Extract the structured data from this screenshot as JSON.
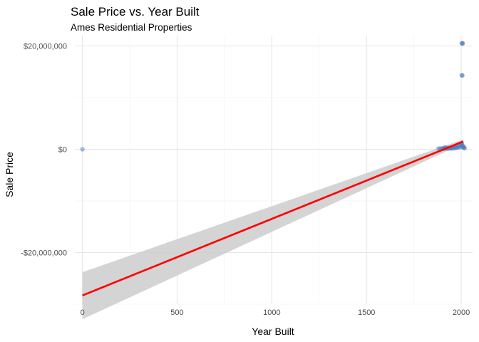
{
  "chart_data": {
    "type": "scatter",
    "title": "Sale Price vs. Year Built",
    "subtitle": "Ames Residential Properties",
    "xlabel": "Year Built",
    "ylabel": "Sale Price",
    "xlim": [
      -40,
      2060
    ],
    "ylim": [
      -30000000,
      22000000
    ],
    "x_ticks": [
      {
        "value": 0,
        "label": "0"
      },
      {
        "value": 500,
        "label": "500"
      },
      {
        "value": 1000,
        "label": "1000"
      },
      {
        "value": 1500,
        "label": "1500"
      },
      {
        "value": 2000,
        "label": "2000"
      }
    ],
    "y_ticks": [
      {
        "value": 20000000,
        "label": "$20,000,000"
      },
      {
        "value": 0,
        "label": "$0"
      },
      {
        "value": -20000000,
        "label": "-$20,000,000"
      }
    ],
    "grid": true,
    "point_color": "#4a7ebb",
    "fit_line_color": "#ff0000",
    "confidence_band_color": "#cccccc",
    "points": [
      {
        "x": 0,
        "y": 0
      },
      {
        "x": 2003,
        "y": 20500000
      },
      {
        "x": 2006,
        "y": 20500000
      },
      {
        "x": 2008,
        "y": 20500000
      },
      {
        "x": 2003,
        "y": 14300000
      },
      {
        "x": 2006,
        "y": 14300000
      },
      {
        "x": 1880,
        "y": 150000
      },
      {
        "x": 1890,
        "y": 120000
      },
      {
        "x": 1900,
        "y": 200000
      },
      {
        "x": 1905,
        "y": 100000
      },
      {
        "x": 1910,
        "y": 180000
      },
      {
        "x": 1915,
        "y": 400000
      },
      {
        "x": 1920,
        "y": 150000
      },
      {
        "x": 1925,
        "y": 250000
      },
      {
        "x": 1930,
        "y": 120000
      },
      {
        "x": 1935,
        "y": 300000
      },
      {
        "x": 1940,
        "y": 180000
      },
      {
        "x": 1945,
        "y": 250000
      },
      {
        "x": 1950,
        "y": 150000
      },
      {
        "x": 1955,
        "y": 350000
      },
      {
        "x": 1960,
        "y": 200000
      },
      {
        "x": 1965,
        "y": 400000
      },
      {
        "x": 1970,
        "y": 250000
      },
      {
        "x": 1975,
        "y": 300000
      },
      {
        "x": 1980,
        "y": 500000
      },
      {
        "x": 1985,
        "y": 350000
      },
      {
        "x": 1990,
        "y": 600000
      },
      {
        "x": 1995,
        "y": 400000
      },
      {
        "x": 2000,
        "y": 800000
      },
      {
        "x": 2003,
        "y": 1200000
      },
      {
        "x": 2005,
        "y": 900000
      },
      {
        "x": 2007,
        "y": 600000
      },
      {
        "x": 2010,
        "y": 500000
      },
      {
        "x": 2012,
        "y": 300000
      },
      {
        "x": 2015,
        "y": 400000
      },
      {
        "x": 2018,
        "y": 200000
      }
    ],
    "fit_line": {
      "x": [
        0,
        2010
      ],
      "y": [
        -28300000,
        1500000
      ]
    },
    "confidence_band": {
      "x": [
        0,
        2010
      ],
      "upper": [
        -23800000,
        1900000
      ],
      "lower": [
        -32900000,
        1100000
      ]
    }
  }
}
